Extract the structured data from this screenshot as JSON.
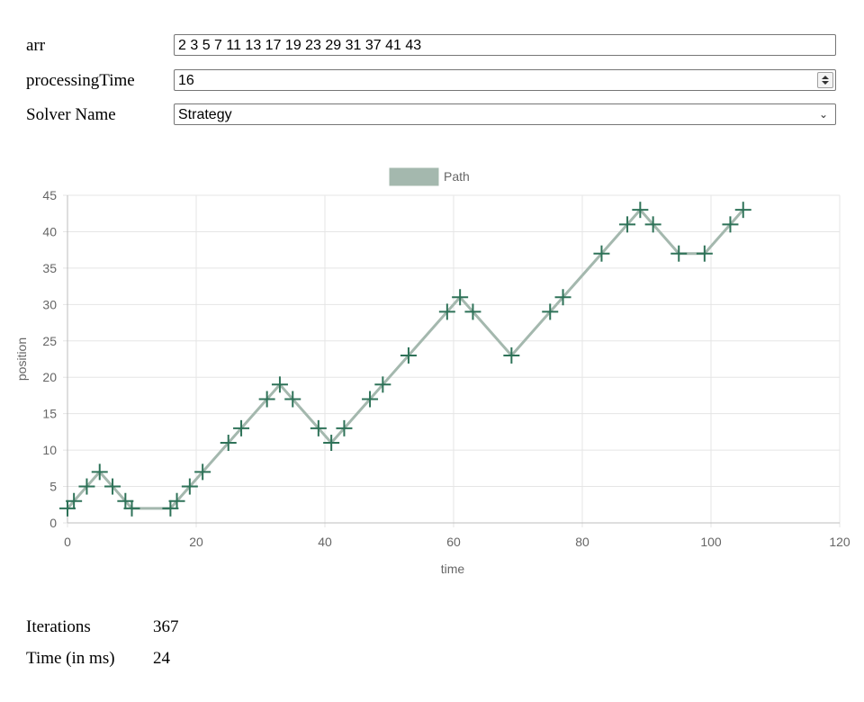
{
  "form": {
    "arr": {
      "label": "arr",
      "value": "2 3 5 7 11 13 17 19 23 29 31 37 41 43"
    },
    "processing_time": {
      "label": "processingTime",
      "value": "16"
    },
    "solver": {
      "label": "Solver Name",
      "value": "Strategy"
    }
  },
  "chart_data": {
    "type": "line",
    "title": "",
    "xlabel": "time",
    "ylabel": "position",
    "xlim": [
      0,
      120
    ],
    "ylim": [
      0,
      45
    ],
    "x_ticks": [
      0,
      20,
      40,
      60,
      80,
      100,
      120
    ],
    "y_ticks": [
      0,
      5,
      10,
      15,
      20,
      25,
      30,
      35,
      40,
      45
    ],
    "grid": true,
    "legend": "top-center",
    "series": [
      {
        "name": "Path",
        "line_color": "#a4b8ae",
        "marker": "cross",
        "marker_color": "#2e7258",
        "x": [
          0,
          1,
          3,
          5,
          7,
          9,
          10,
          16,
          17,
          19,
          21,
          25,
          27,
          31,
          33,
          35,
          39,
          41,
          43,
          47,
          49,
          53,
          59,
          61,
          63,
          69,
          75,
          77,
          83,
          87,
          89,
          91,
          95,
          99,
          103,
          105
        ],
        "y": [
          2,
          3,
          5,
          7,
          5,
          3,
          2,
          2,
          3,
          5,
          7,
          11,
          13,
          17,
          19,
          17,
          13,
          11,
          13,
          17,
          19,
          23,
          29,
          31,
          29,
          23,
          29,
          31,
          37,
          41,
          43,
          41,
          37,
          37,
          41,
          43
        ]
      }
    ]
  },
  "stats": {
    "iterations": {
      "label": "Iterations",
      "value": "367"
    },
    "time": {
      "label": "Time (in ms)",
      "value": "24"
    }
  }
}
